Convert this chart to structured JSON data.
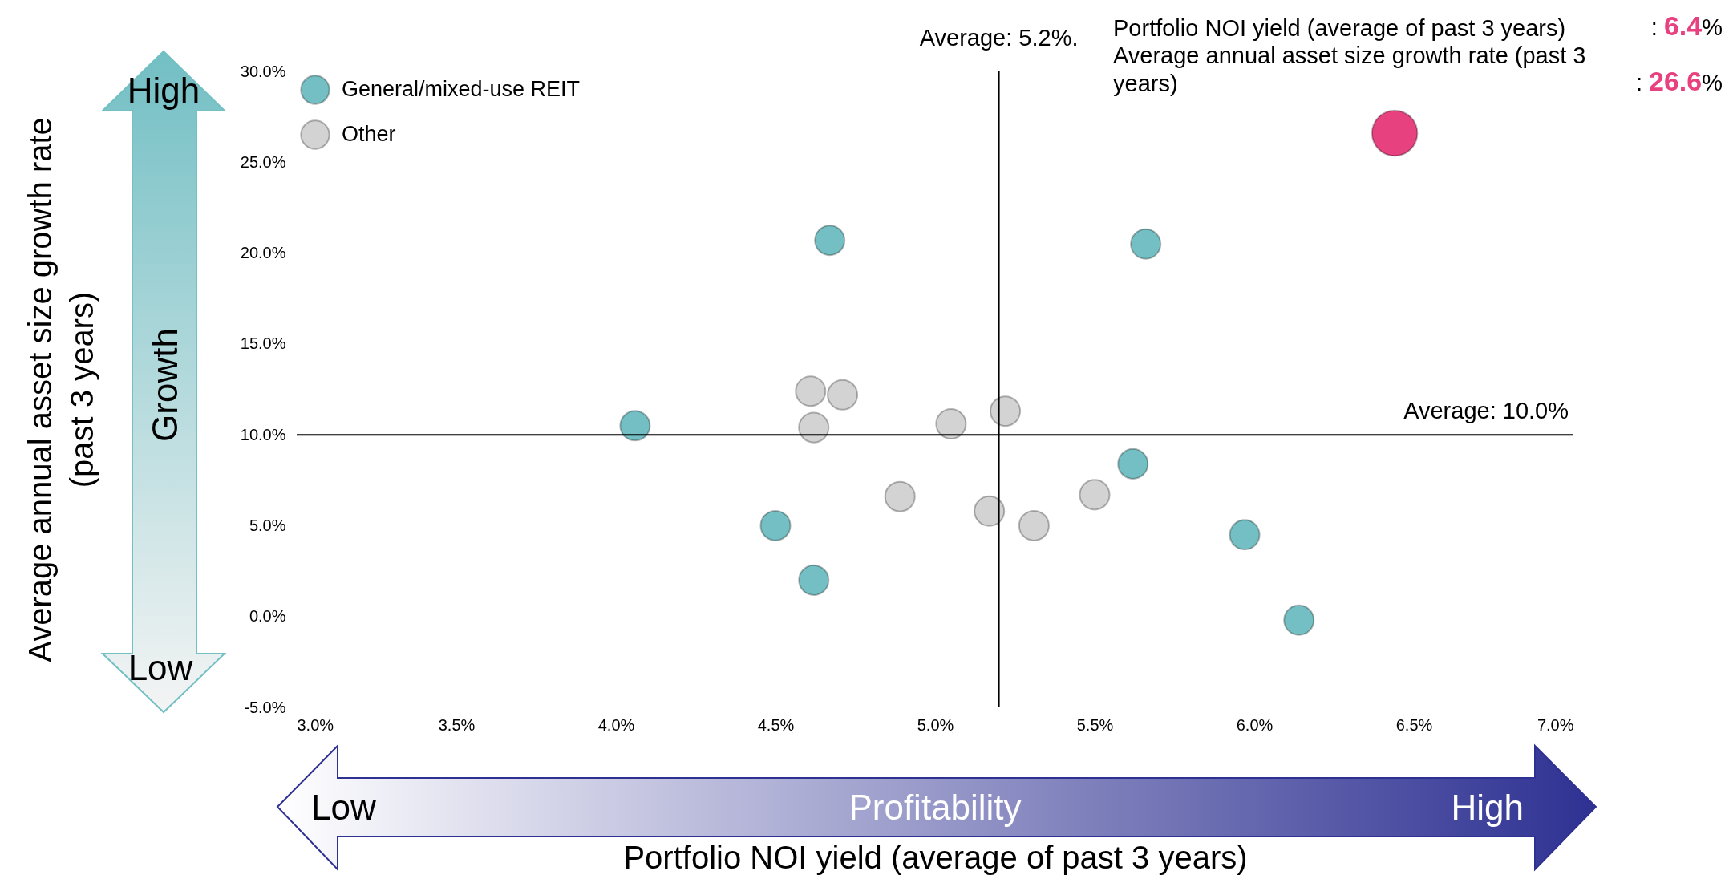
{
  "chart_data": {
    "type": "bubble",
    "xlabel": "Portfolio NOI yield (average of past 3 years)",
    "ylabel": "Average annual asset size growth rate (past 3 years)",
    "xlim": [
      3,
      7
    ],
    "ylim": [
      -5,
      30
    ],
    "xticks": [
      {
        "value": 3,
        "label": "3.0%"
      },
      {
        "value": 3.5,
        "label": "3.5%"
      },
      {
        "value": 4,
        "label": "4.0%"
      },
      {
        "value": 4.5,
        "label": "4.5%"
      },
      {
        "value": 5,
        "label": "5.0%"
      },
      {
        "value": 5.5,
        "label": "5.5%"
      },
      {
        "value": 6,
        "label": "6.0%"
      },
      {
        "value": 6.5,
        "label": "6.5%"
      },
      {
        "value": 7,
        "label": "7.0%"
      }
    ],
    "yticks": [
      {
        "value": -5,
        "label": "-5.0%"
      },
      {
        "value": 0,
        "label": "0.0%"
      },
      {
        "value": 5,
        "label": "5.0%"
      },
      {
        "value": 10,
        "label": "10.0%"
      },
      {
        "value": 15,
        "label": "15.0%"
      },
      {
        "value": 20,
        "label": "20.0%"
      },
      {
        "value": 25,
        "label": "25.0%"
      },
      {
        "value": 30,
        "label": "30.0%"
      }
    ],
    "legend": "top left",
    "grid": false,
    "marker": "circle",
    "series": [
      {
        "color": "#e8417f",
        "x": [
          6.44
        ],
        "values": [
          26.6
        ],
        "sizes": [
          1
        ]
      },
      {
        "name": "General/mixed-use REIT",
        "color": "#73bfc3",
        "x": [
          4.67,
          5.66,
          4.06,
          5.62,
          4.5,
          5.97,
          4.62,
          6.14
        ],
        "values": [
          20.7,
          20.5,
          10.5,
          8.4,
          5.0,
          4.5,
          2.0,
          -0.2
        ],
        "sizes": [
          0.43,
          0.43,
          0.43,
          0.43,
          0.43,
          0.43,
          0.43,
          0.43
        ]
      },
      {
        "name": "Other",
        "color": "#d3d3d3",
        "x": [
          4.61,
          4.71,
          4.62,
          5.05,
          5.22,
          4.89,
          5.17,
          5.31,
          5.5
        ],
        "values": [
          12.4,
          12.2,
          10.4,
          10.6,
          11.3,
          6.6,
          5.8,
          5.0,
          6.7
        ],
        "sizes": [
          0.43,
          0.43,
          0.43,
          0.43,
          0.43,
          0.43,
          0.43,
          0.43,
          0.43
        ]
      }
    ],
    "ref_lines": [
      {
        "axis": "x",
        "value": 5.2,
        "label": "Average: 5.2%."
      },
      {
        "axis": "y",
        "value": 10,
        "label": "Average: 10.0%"
      }
    ],
    "annotations": [
      "Portfolio NOI yield (average of past 3 years) : 6.4%",
      "Average annual asset size growth rate (past 3 years) : 26.6%",
      "High",
      "Growth",
      "Low",
      "Low",
      "Profitability",
      "High"
    ]
  }
}
